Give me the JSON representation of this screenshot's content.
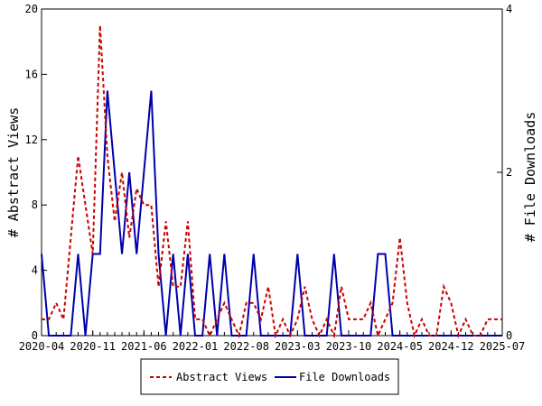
{
  "chart_data": {
    "type": "line",
    "title": "",
    "ylabel_left": "# Abstract Views",
    "ylabel_right": "# File Downloads",
    "xlabel": "",
    "x_tick_labels": [
      "2020-04",
      "2020-11",
      "2021-06",
      "2022-01",
      "2022-08",
      "2023-03",
      "2023-10",
      "2024-05",
      "2024-12",
      "2025-07"
    ],
    "ylim_left": [
      0,
      20
    ],
    "yticks_left": [
      "0",
      "4",
      "8",
      "12",
      "16",
      "20"
    ],
    "ylim_right": [
      0,
      4
    ],
    "yticks_right": [
      "0",
      "2",
      "4"
    ],
    "x_months": [
      "2020-04",
      "2020-05",
      "2020-06",
      "2020-07",
      "2020-08",
      "2020-09",
      "2020-10",
      "2020-11",
      "2020-12",
      "2021-01",
      "2021-02",
      "2021-03",
      "2021-04",
      "2021-05",
      "2021-06",
      "2021-07",
      "2021-08",
      "2021-09",
      "2021-10",
      "2021-11",
      "2021-12",
      "2022-01",
      "2022-02",
      "2022-03",
      "2022-04",
      "2022-05",
      "2022-06",
      "2022-07",
      "2022-08",
      "2022-09",
      "2022-10",
      "2022-11",
      "2022-12",
      "2023-01",
      "2023-02",
      "2023-03",
      "2023-04",
      "2023-05",
      "2023-06",
      "2023-07",
      "2023-08",
      "2023-09",
      "2023-10",
      "2023-11",
      "2023-12",
      "2024-01",
      "2024-02",
      "2024-03",
      "2024-04",
      "2024-05",
      "2024-06",
      "2024-07",
      "2024-08",
      "2024-09",
      "2024-10",
      "2024-11",
      "2024-12",
      "2025-01",
      "2025-02",
      "2025-03",
      "2025-04",
      "2025-05",
      "2025-06",
      "2025-07"
    ],
    "grid": false,
    "legend_position": "bottom-center",
    "series": [
      {
        "name": "Abstract Views",
        "axis": "left",
        "color": "#cc0000",
        "style": "dashed",
        "values": [
          1,
          1,
          2,
          1,
          6,
          11,
          8,
          5,
          19,
          11,
          7,
          10,
          6,
          9,
          8,
          8,
          3,
          7,
          3,
          3,
          7,
          1,
          1,
          0,
          1,
          2,
          1,
          0,
          2,
          2,
          1,
          3,
          0,
          1,
          0,
          1,
          3,
          1,
          0,
          1,
          0,
          3,
          1,
          1,
          1,
          2,
          0,
          1,
          2,
          6,
          2,
          0,
          1,
          0,
          0,
          3,
          2,
          0,
          1,
          0,
          0,
          1,
          1,
          1
        ]
      },
      {
        "name": "File Downloads",
        "axis": "right",
        "color": "#0000aa",
        "style": "solid",
        "values": [
          1,
          0,
          0,
          0,
          0,
          1,
          0,
          1,
          1,
          3,
          2,
          1,
          2,
          1,
          2,
          3,
          1,
          0,
          1,
          0,
          1,
          0,
          0,
          1,
          0,
          1,
          0,
          0,
          0,
          1,
          0,
          0,
          0,
          0,
          0,
          1,
          0,
          0,
          0,
          0,
          1,
          0,
          0,
          0,
          0,
          0,
          1,
          1,
          0,
          0,
          0,
          0,
          0,
          0,
          0,
          0,
          0,
          0,
          0,
          0,
          0,
          0,
          0,
          0
        ]
      }
    ]
  },
  "legend": {
    "items": [
      {
        "label": "Abstract Views",
        "color": "#cc0000",
        "style": "dashed"
      },
      {
        "label": "File Downloads",
        "color": "#0000aa",
        "style": "solid"
      }
    ]
  }
}
